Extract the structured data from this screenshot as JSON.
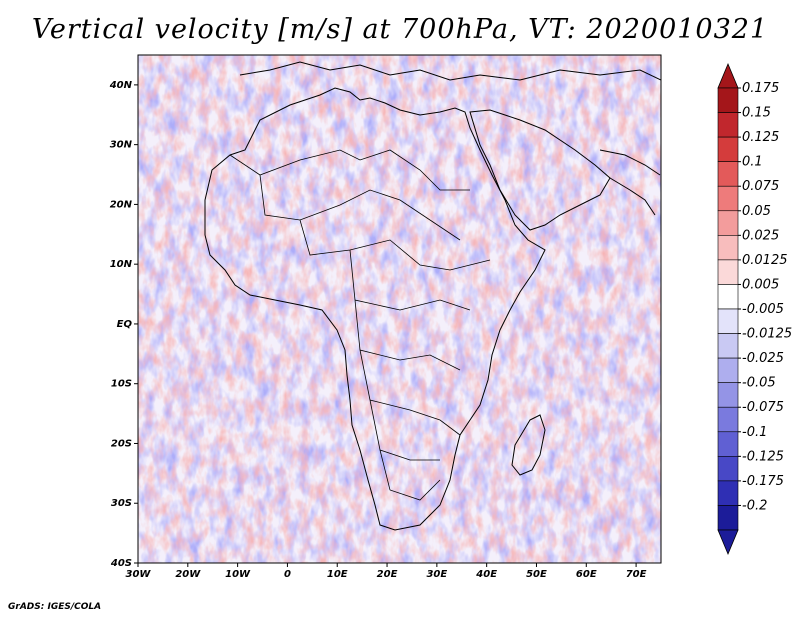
{
  "title": "Vertical velocity [m/s] at 700hPa, VT: 2020010321",
  "footer": "GrADS: IGES/COLA",
  "map": {
    "lon_range": [
      -30,
      75
    ],
    "lat_range": [
      -40,
      45
    ],
    "lon_ticks": [
      "30W",
      "20W",
      "10W",
      "0",
      "10E",
      "20E",
      "30E",
      "40E",
      "50E",
      "60E",
      "70E"
    ],
    "lat_ticks": [
      "40N",
      "30N",
      "20N",
      "10N",
      "EQ",
      "10S",
      "20S",
      "30S",
      "40S"
    ],
    "field": "vertical velocity",
    "level": "700hPa"
  },
  "colorbar": {
    "labels": [
      "0.175",
      "0.15",
      "0.125",
      "0.1",
      "0.075",
      "0.05",
      "0.025",
      "0.0125",
      "0.005",
      "-0.005",
      "-0.0125",
      "-0.025",
      "-0.05",
      "-0.075",
      "-0.1",
      "-0.125",
      "-0.175",
      "-0.2"
    ],
    "colors": [
      "#a4161a",
      "#c1272d",
      "#d43c3c",
      "#e35a5a",
      "#ee7b7b",
      "#f39c9c",
      "#f8bdbd",
      "#fbd9d9",
      "#ffffff",
      "#e3e3fa",
      "#c9c9f3",
      "#aeaeee",
      "#9494e6",
      "#7a7ade",
      "#6060d3",
      "#4848c6",
      "#2f2fb4",
      "#1c1c99"
    ],
    "top_color": "#a4161a",
    "bottom_color": "#1c1c99"
  }
}
